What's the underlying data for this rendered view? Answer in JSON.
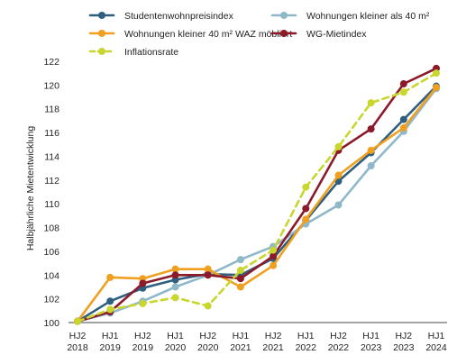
{
  "chart_data": {
    "type": "line",
    "title": "",
    "xlabel": "",
    "ylabel": "Halbjährliche Mietentwicklung",
    "ylim": [
      100,
      122
    ],
    "yticks": [
      100,
      102,
      104,
      106,
      108,
      110,
      112,
      114,
      116,
      118,
      120,
      122
    ],
    "grid": false,
    "legend_position": "top",
    "categories": [
      [
        "HJ2",
        "2018"
      ],
      [
        "HJ1",
        "2019"
      ],
      [
        "HJ2",
        "2019"
      ],
      [
        "HJ1",
        "2020"
      ],
      [
        "HJ2",
        "2020"
      ],
      [
        "HJ1",
        "2021"
      ],
      [
        "HJ2",
        "2021"
      ],
      [
        "HJ1",
        "2022"
      ],
      [
        "HJ2",
        "2022"
      ],
      [
        "HJ1",
        "2023"
      ],
      [
        "HJ2",
        "2023"
      ],
      [
        "HJ1",
        "2024"
      ]
    ],
    "series": [
      {
        "name": "Studentenwohnpreisindex",
        "color": "#2f5f7f",
        "dashed": false,
        "values": [
          100.1,
          101.8,
          102.9,
          103.6,
          104.1,
          104.0,
          105.4,
          108.6,
          111.9,
          114.3,
          117.1,
          119.9
        ]
      },
      {
        "name": "Wohnungen kleiner als 40 m²",
        "color": "#8fb8c9",
        "dashed": false,
        "values": [
          100.1,
          100.8,
          101.8,
          103.0,
          104.0,
          105.3,
          106.4,
          108.3,
          109.9,
          113.2,
          116.1,
          119.7
        ]
      },
      {
        "name": "Wohnungen kleiner 40 m² WAZ möbliert",
        "color": "#f0a020",
        "dashed": false,
        "values": [
          100.1,
          103.8,
          103.7,
          104.5,
          104.5,
          103.0,
          104.8,
          108.7,
          112.4,
          114.5,
          116.4,
          119.8
        ]
      },
      {
        "name": "WG-Mietindex",
        "color": "#8c1a2a",
        "dashed": false,
        "values": [
          100.1,
          100.9,
          103.3,
          104.0,
          104.0,
          103.7,
          105.6,
          109.6,
          114.5,
          116.3,
          120.1,
          121.4
        ]
      },
      {
        "name": "Inflationsrate",
        "color": "#c8d62e",
        "dashed": true,
        "values": [
          100.1,
          101.1,
          101.6,
          102.1,
          101.4,
          104.4,
          106.1,
          111.4,
          114.8,
          118.5,
          119.4,
          121.0
        ]
      }
    ]
  }
}
